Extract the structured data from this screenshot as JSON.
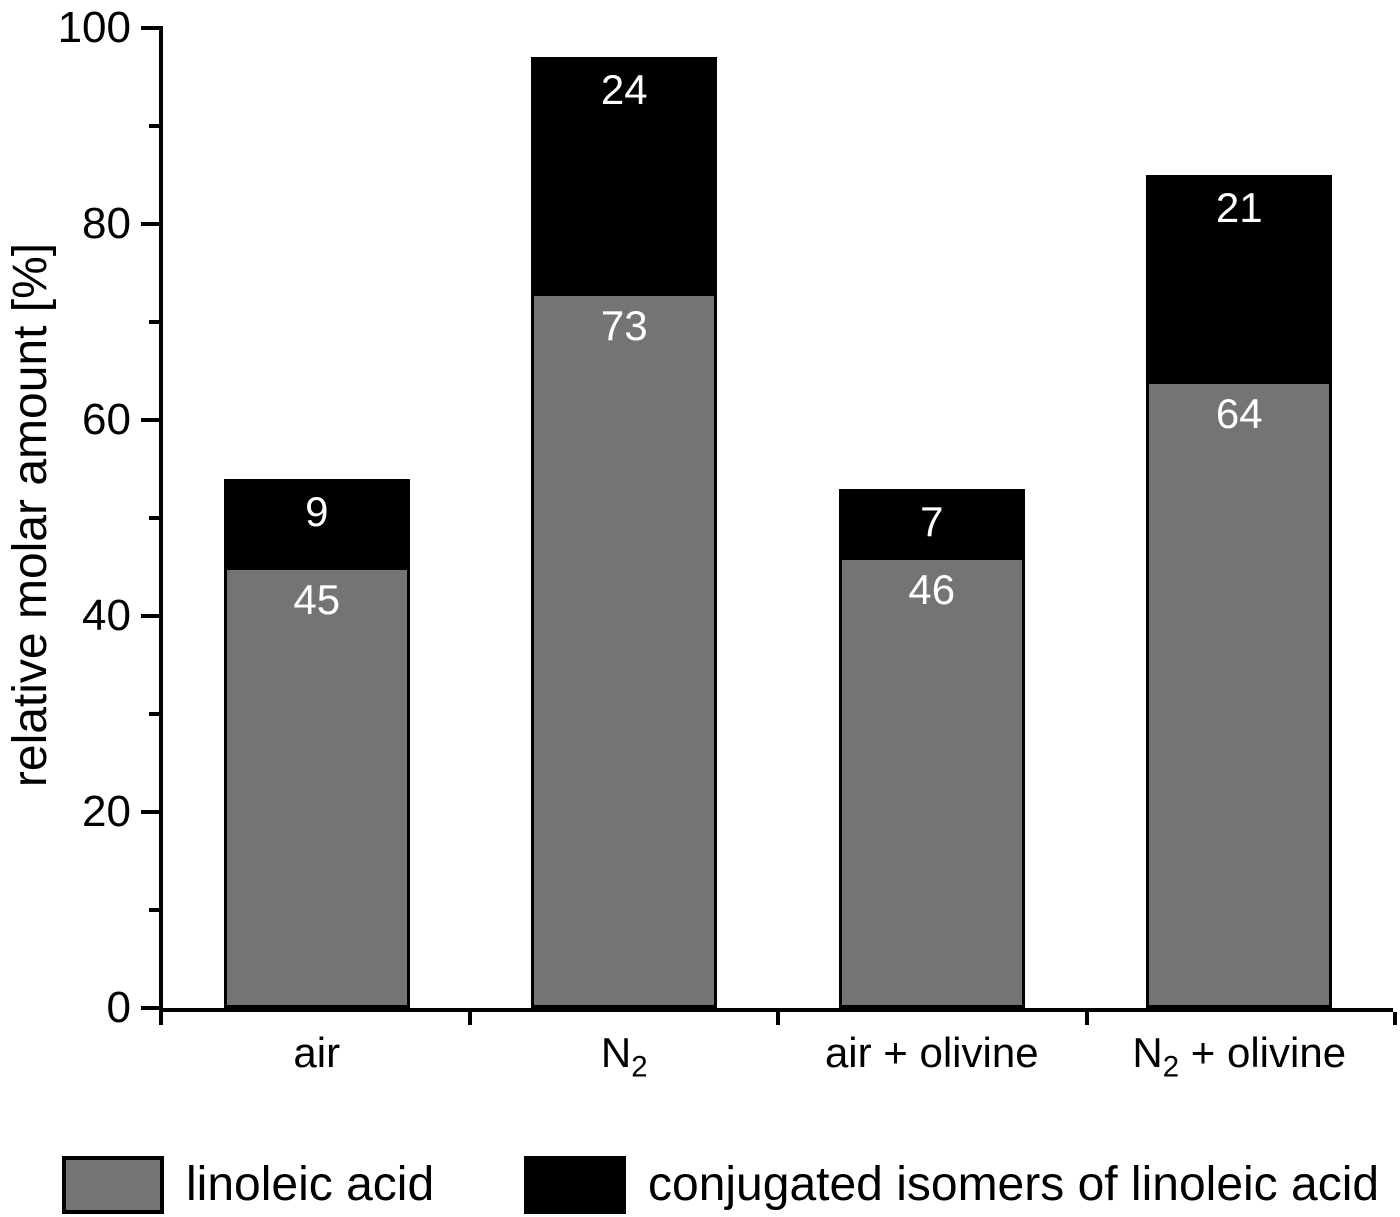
{
  "chart_data": {
    "type": "bar",
    "subtype": "stacked-vertical",
    "title": "",
    "xlabel": "",
    "ylabel": "relative molar amount [%]",
    "categories": [
      "air",
      "N₂",
      "air + olivine",
      "N₂ + olivine"
    ],
    "series": [
      {
        "name": "linoleic acid",
        "color": "#747474",
        "label_color": "#ffffff",
        "values": [
          45,
          73,
          46,
          64
        ]
      },
      {
        "name": "conjugated isomers of linoleic acid",
        "color": "#000000",
        "label_color": "#ffffff",
        "values": [
          9,
          24,
          7,
          21
        ]
      }
    ],
    "ylim": [
      0,
      100
    ],
    "yticks_major": [
      0,
      20,
      40,
      60,
      80,
      100
    ],
    "yticks_minor": [
      10,
      30,
      50,
      70,
      90
    ],
    "grid": false,
    "legend_position": "bottom",
    "bar_outline_color": "#000000",
    "axis_color": "#000000"
  }
}
